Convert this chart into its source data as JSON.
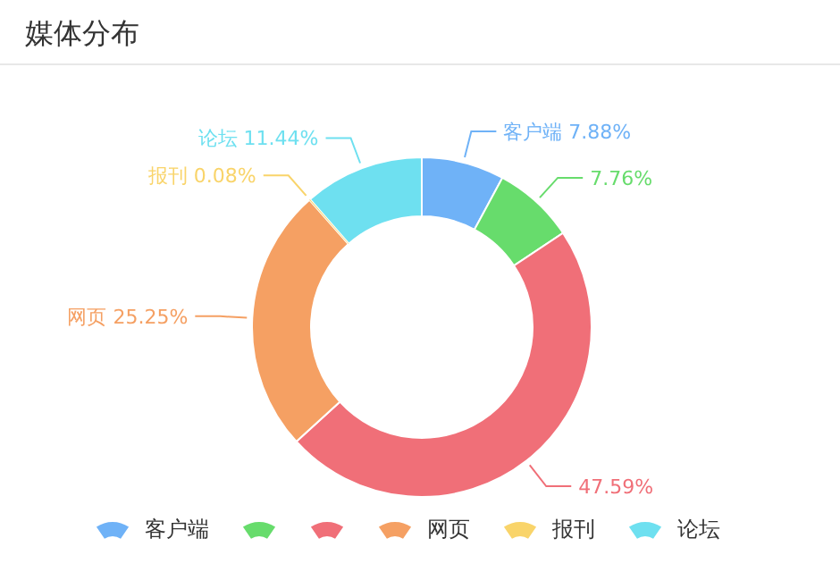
{
  "chart_data": {
    "type": "donut",
    "title": "媒体分布",
    "categories": [
      "客户端",
      null,
      null,
      "网页",
      "报刊",
      "论坛"
    ],
    "values": [
      7.88,
      7.76,
      47.59,
      25.25,
      0.08,
      11.44
    ],
    "value_labels": [
      "7.88%",
      "7.76%",
      "47.59%",
      "25.25%",
      "0.08%",
      "11.44%"
    ],
    "colors": [
      "#6fb2f7",
      "#67dc6c",
      "#f06f78",
      "#f5a063",
      "#f9d46a",
      "#6ee0f0"
    ],
    "legend": "bottom"
  }
}
